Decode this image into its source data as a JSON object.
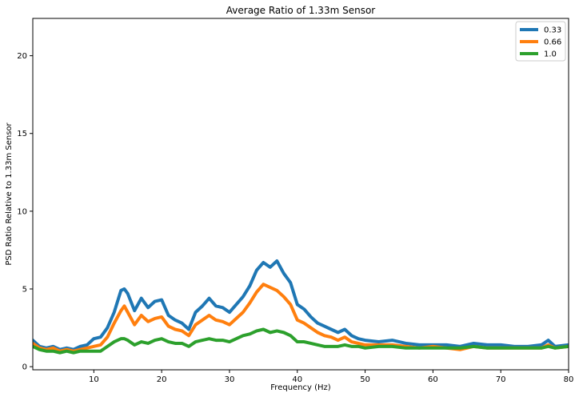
{
  "chart_data": {
    "type": "line",
    "title": "Average Ratio of 1.33m Sensor",
    "xlabel": "Frequency (Hz)",
    "ylabel": "PSD Ratio Relative to 1.33m Sensor",
    "xlim": [
      1,
      80
    ],
    "ylim": [
      -0.2,
      22.4
    ],
    "xticks": [
      10,
      20,
      30,
      40,
      50,
      60,
      70,
      80
    ],
    "yticks": [
      0,
      5,
      10,
      15,
      20
    ],
    "grid": false,
    "legend_position": "top-right",
    "series": [
      {
        "name": "0.33",
        "color": "#1f77b4",
        "x": [
          1,
          2,
          3,
          4,
          5,
          6,
          7,
          8,
          9,
          10,
          11,
          12,
          13,
          14,
          14.5,
          15,
          16,
          17,
          18,
          19,
          20,
          21,
          22,
          23,
          24,
          25,
          26,
          27,
          28,
          29,
          30,
          31,
          32,
          33,
          34,
          35,
          36,
          37,
          38,
          39,
          40,
          41,
          42,
          43,
          44,
          45,
          46,
          47,
          48,
          49,
          50,
          52,
          54,
          56,
          58,
          60,
          62,
          64,
          66,
          68,
          70,
          72,
          74,
          76,
          77,
          78,
          80
        ],
        "y": [
          1.7,
          1.3,
          1.2,
          1.3,
          1.1,
          1.2,
          1.1,
          1.3,
          1.4,
          1.8,
          1.9,
          2.5,
          3.5,
          4.9,
          5.0,
          4.7,
          3.6,
          4.4,
          3.8,
          4.2,
          4.3,
          3.3,
          3.0,
          2.8,
          2.4,
          3.5,
          3.9,
          4.4,
          3.9,
          3.8,
          3.5,
          4.0,
          4.5,
          5.2,
          6.2,
          6.7,
          6.4,
          6.8,
          6.0,
          5.4,
          4.0,
          3.7,
          3.2,
          2.8,
          2.6,
          2.4,
          2.2,
          2.4,
          2.0,
          1.8,
          1.7,
          1.6,
          1.7,
          1.5,
          1.4,
          1.4,
          1.4,
          1.3,
          1.5,
          1.4,
          1.4,
          1.3,
          1.3,
          1.4,
          1.7,
          1.3,
          1.4
        ]
      },
      {
        "name": "0.66",
        "color": "#ff7f0e",
        "x": [
          1,
          2,
          3,
          4,
          5,
          6,
          7,
          8,
          9,
          10,
          11,
          12,
          13,
          14,
          14.5,
          15,
          16,
          17,
          18,
          19,
          20,
          21,
          22,
          23,
          24,
          25,
          26,
          27,
          28,
          29,
          30,
          31,
          32,
          33,
          34,
          35,
          36,
          37,
          38,
          39,
          40,
          41,
          42,
          43,
          44,
          45,
          46,
          47,
          48,
          49,
          50,
          52,
          54,
          56,
          58,
          60,
          62,
          64,
          66,
          68,
          70,
          72,
          74,
          76,
          77,
          78,
          80
        ],
        "y": [
          1.5,
          1.2,
          1.1,
          1.2,
          1.0,
          1.1,
          1.0,
          1.1,
          1.2,
          1.3,
          1.4,
          1.9,
          2.8,
          3.6,
          3.9,
          3.5,
          2.7,
          3.3,
          2.9,
          3.1,
          3.2,
          2.6,
          2.4,
          2.3,
          2.0,
          2.7,
          3.0,
          3.3,
          3.0,
          2.9,
          2.7,
          3.1,
          3.5,
          4.1,
          4.8,
          5.3,
          5.1,
          4.9,
          4.5,
          4.0,
          3.0,
          2.8,
          2.5,
          2.2,
          2.0,
          1.9,
          1.7,
          1.9,
          1.6,
          1.5,
          1.4,
          1.4,
          1.4,
          1.3,
          1.2,
          1.3,
          1.2,
          1.1,
          1.3,
          1.2,
          1.2,
          1.2,
          1.2,
          1.2,
          1.4,
          1.2,
          1.3
        ]
      },
      {
        "name": "1.0",
        "color": "#2ca02c",
        "x": [
          1,
          2,
          3,
          4,
          5,
          6,
          7,
          8,
          9,
          10,
          11,
          12,
          13,
          14,
          14.5,
          15,
          16,
          17,
          18,
          19,
          20,
          21,
          22,
          23,
          24,
          25,
          26,
          27,
          28,
          29,
          30,
          31,
          32,
          33,
          34,
          35,
          36,
          37,
          38,
          39,
          40,
          41,
          42,
          43,
          44,
          45,
          46,
          47,
          48,
          49,
          50,
          52,
          54,
          56,
          58,
          60,
          62,
          64,
          66,
          68,
          70,
          72,
          74,
          76,
          77,
          78,
          80
        ],
        "y": [
          1.3,
          1.1,
          1.0,
          1.0,
          0.9,
          1.0,
          0.9,
          1.0,
          1.0,
          1.0,
          1.0,
          1.3,
          1.6,
          1.8,
          1.8,
          1.7,
          1.4,
          1.6,
          1.5,
          1.7,
          1.8,
          1.6,
          1.5,
          1.5,
          1.3,
          1.6,
          1.7,
          1.8,
          1.7,
          1.7,
          1.6,
          1.8,
          2.0,
          2.1,
          2.3,
          2.4,
          2.2,
          2.3,
          2.2,
          2.0,
          1.6,
          1.6,
          1.5,
          1.4,
          1.3,
          1.3,
          1.3,
          1.4,
          1.3,
          1.3,
          1.2,
          1.3,
          1.3,
          1.2,
          1.2,
          1.2,
          1.2,
          1.2,
          1.3,
          1.2,
          1.2,
          1.2,
          1.2,
          1.2,
          1.3,
          1.2,
          1.3
        ]
      }
    ]
  }
}
